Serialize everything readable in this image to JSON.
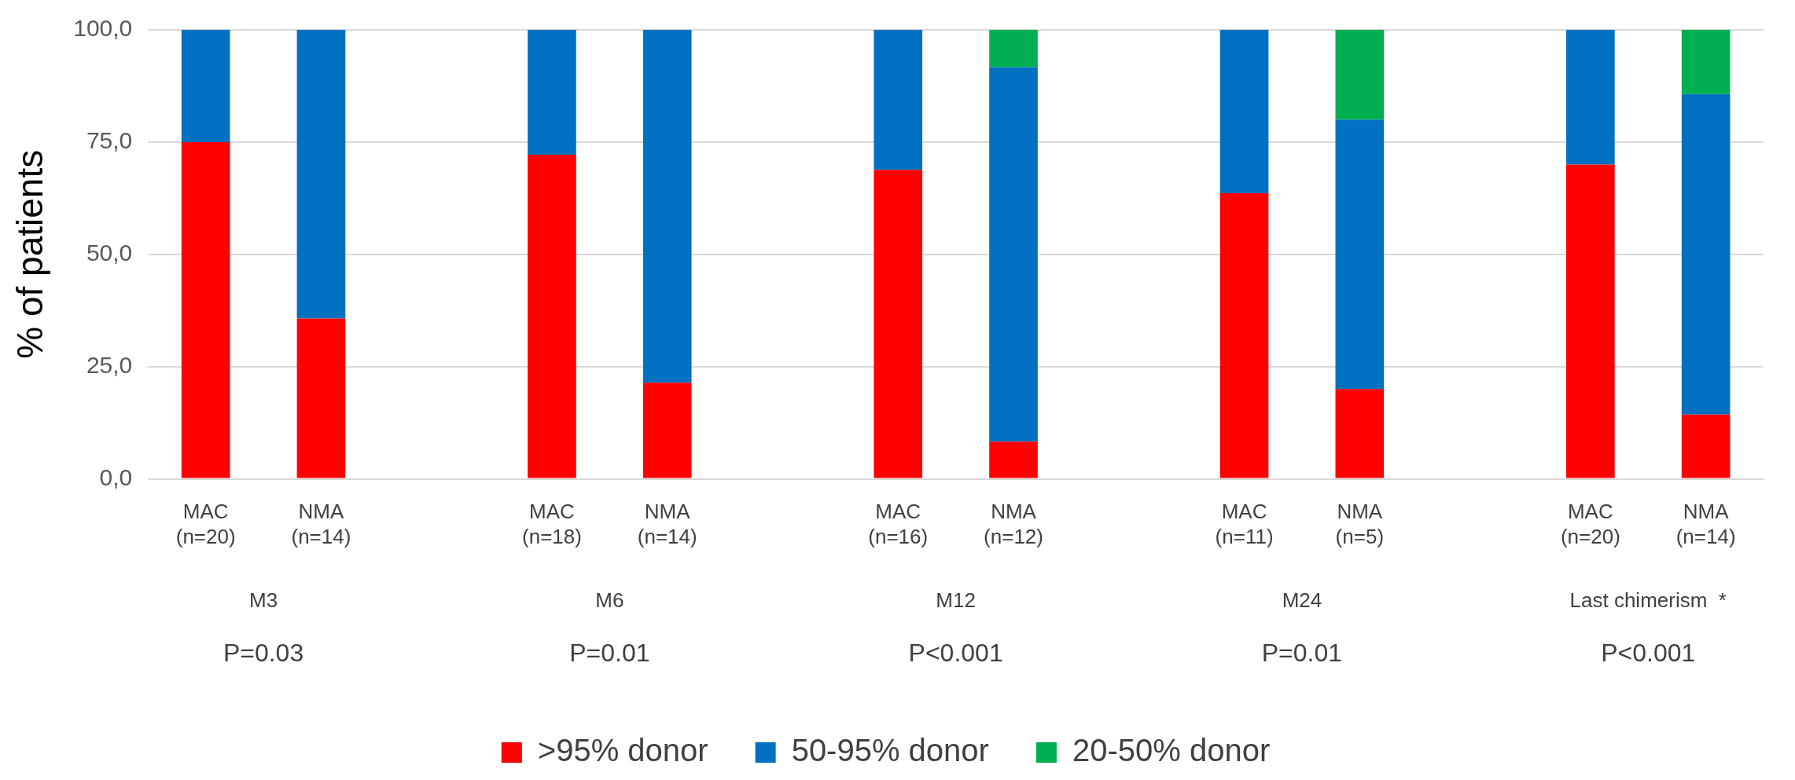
{
  "chart_data": {
    "type": "bar",
    "stacked": true,
    "ylabel": "% of patients",
    "categories": [
      "MAC\n(n=20)",
      "NMA\n(n=14)",
      null,
      "MAC\n(n=18)",
      "NMA\n(n=14)",
      null,
      "MAC\n(n=16)",
      "NMA\n(n=12)",
      null,
      "MAC\n(n=11)",
      "NMA\n(n=5)",
      null,
      "MAC\n(n=20)",
      "NMA\n(n=14)"
    ],
    "series": [
      {
        "name": ">95% donor",
        "color": "#ff0000",
        "values": [
          75,
          35.7,
          null,
          72.2,
          21.4,
          null,
          68.8,
          8.3,
          null,
          63.6,
          20,
          null,
          70,
          14.3
        ]
      },
      {
        "name": "50-95% donor",
        "color": "#0070c0",
        "values": [
          25,
          64.3,
          null,
          27.8,
          78.6,
          null,
          31.2,
          83.4,
          null,
          36.4,
          60,
          null,
          30,
          71.4
        ]
      },
      {
        "name": "20-50% donor",
        "color": "#00b050",
        "values": [
          0,
          0,
          null,
          0,
          0,
          null,
          0,
          8.3,
          null,
          0,
          20,
          null,
          0,
          14.3
        ]
      }
    ],
    "annotations": [
      "M3",
      "P=0.03",
      "M6",
      "P=0.01",
      "M12",
      "P<0.001",
      "M24",
      "P=0.01",
      "Last chimerism  *",
      "P<0.001"
    ],
    "ylim": [
      0,
      100
    ],
    "yticks": [
      {
        "value": 0,
        "label": "0,0"
      },
      {
        "value": 25,
        "label": "25,0"
      },
      {
        "value": 50,
        "label": "50,0"
      },
      {
        "value": 75,
        "label": "75,0"
      },
      {
        "value": 100,
        "label": "100,0"
      }
    ],
    "grid": "y",
    "legend": "bottom"
  }
}
